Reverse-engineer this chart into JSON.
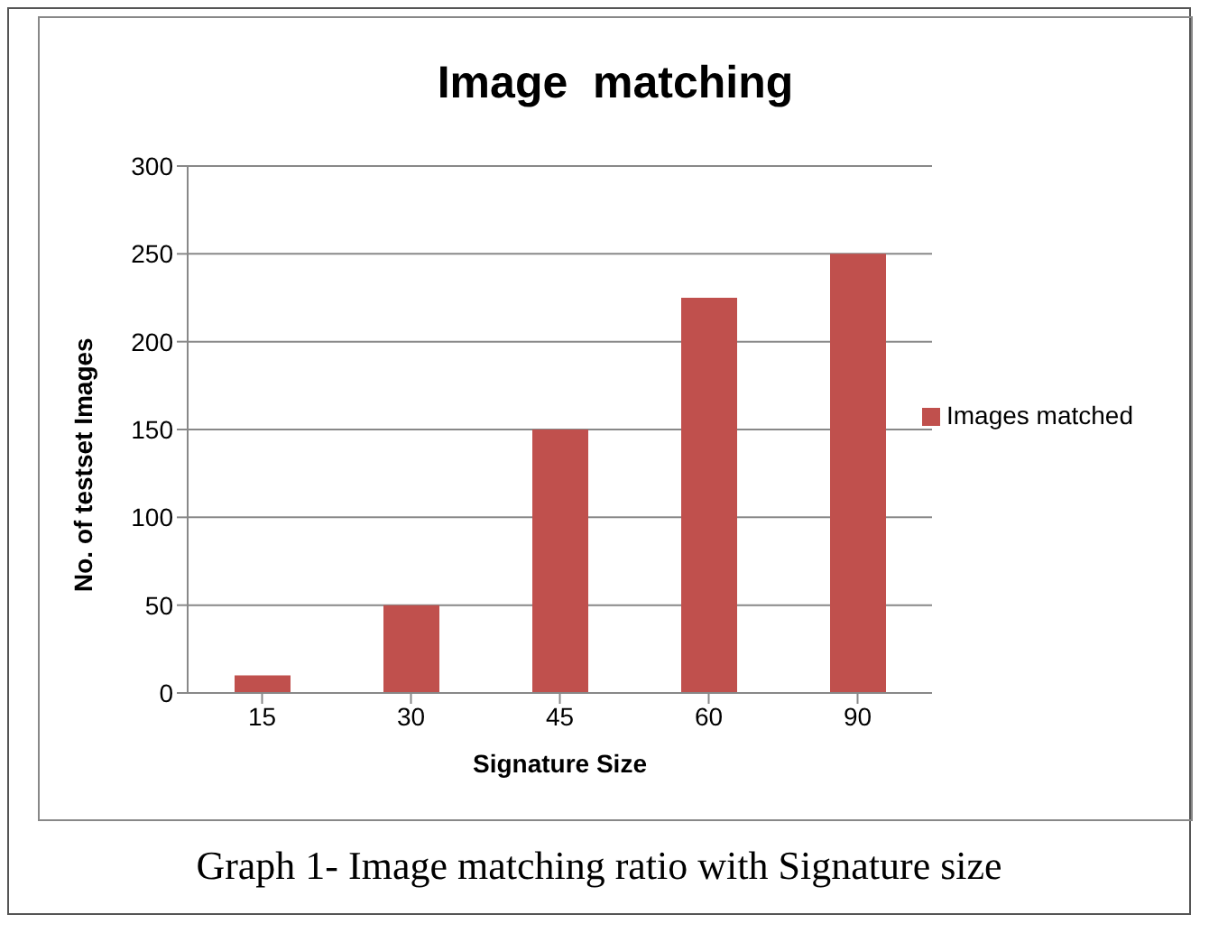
{
  "chart_data": {
    "type": "bar",
    "title": "Image  matching",
    "xlabel": "Signature Size",
    "ylabel": "No. of testset Images",
    "categories": [
      "15",
      "30",
      "45",
      "60",
      "90"
    ],
    "series": [
      {
        "name": "Images matched",
        "color": "#c0504d",
        "values": [
          10,
          50,
          150,
          225,
          250
        ]
      }
    ],
    "ylim": [
      0,
      300
    ],
    "yticks": [
      0,
      50,
      100,
      150,
      200,
      250,
      300
    ],
    "grid": "y",
    "legend": "right",
    "annotations": [
      "Graph 1- Image matching ratio with Signature size"
    ]
  }
}
